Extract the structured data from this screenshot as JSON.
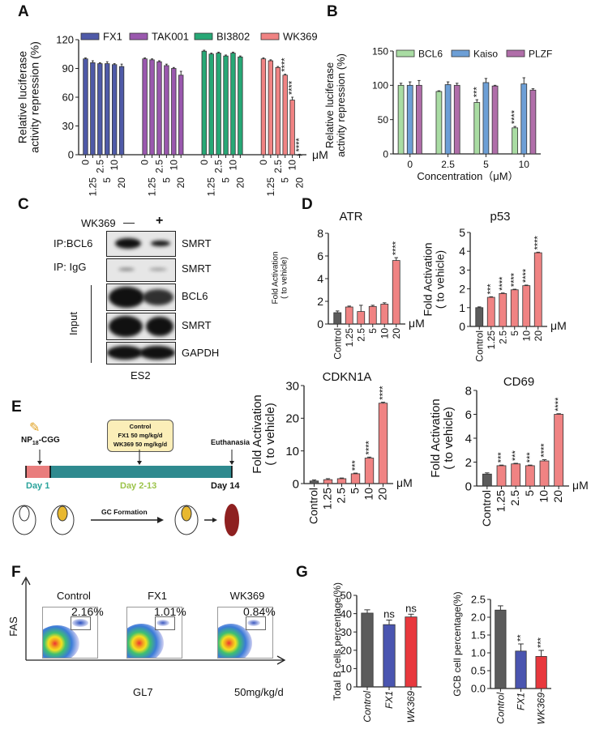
{
  "panels": {
    "A": "A",
    "B": "B",
    "C": "C",
    "D": "D",
    "E": "E",
    "F": "F",
    "G": "G"
  },
  "colors": {
    "fx1": "#4f5aa8",
    "tak001": "#9a58ae",
    "bi3802": "#27a876",
    "wk369": "#f08383",
    "bcl6": "#a9dca3",
    "kaiso": "#6d9fd6",
    "plzf": "#b06ea9",
    "control": "#5b5b5b",
    "fx1_g": "#4a55b0",
    "wk369_g": "#e8383d"
  },
  "chart_data": [
    {
      "id": "A",
      "type": "bar",
      "title": "",
      "ylabel": [
        "Relative luciferase",
        "activity  repression (%)"
      ],
      "xunit": "μM",
      "ylim": [
        0,
        120
      ],
      "yticks": [
        "0",
        "30",
        "60",
        "90",
        "120"
      ],
      "grid": false,
      "legend": "top",
      "categories": [
        "0",
        "1.25",
        "2.5",
        "5",
        "10",
        "20"
      ],
      "series": [
        {
          "name": "FX1",
          "color": "#4f5aa8",
          "values": [
            100,
            96,
            95,
            95,
            94,
            92
          ],
          "errors": [
            1,
            2,
            1,
            2,
            1,
            2.5
          ],
          "sig": [
            "",
            "",
            "",
            "",
            "",
            ""
          ]
        },
        {
          "name": "TAK001",
          "color": "#9a58ae",
          "values": [
            100,
            99,
            97,
            93,
            90,
            83
          ],
          "errors": [
            1,
            1,
            1,
            1.5,
            1,
            4
          ],
          "sig": [
            "",
            "",
            "",
            "",
            "",
            ""
          ]
        },
        {
          "name": "BI3802",
          "color": "#27a876",
          "values": [
            108,
            105,
            106,
            103,
            106,
            102
          ],
          "errors": [
            1,
            1,
            1,
            1,
            1,
            1
          ],
          "sig": [
            "",
            "",
            "",
            "",
            "",
            ""
          ]
        },
        {
          "name": "WK369",
          "color": "#f08383",
          "values": [
            100,
            98,
            91,
            83,
            57,
            0
          ],
          "errors": [
            1,
            1,
            1,
            1,
            3,
            0.5
          ],
          "sig": [
            "",
            "",
            "",
            "****",
            "****",
            "****"
          ]
        }
      ]
    },
    {
      "id": "B",
      "type": "bar",
      "title": "",
      "ylabel": [
        "Relative luciferase",
        "activity  repression (%)"
      ],
      "xlabel": "Concentration（μM）",
      "ylim": [
        0,
        150
      ],
      "yticks": [
        "0",
        "50",
        "100",
        "150"
      ],
      "grid": false,
      "legend": "top",
      "categories": [
        "0",
        "2.5",
        "5",
        "10"
      ],
      "series": [
        {
          "name": "BCL6",
          "color": "#a9dca3",
          "values": [
            100,
            91,
            75,
            38
          ],
          "errors": [
            3,
            1,
            4,
            2
          ],
          "sig": [
            "",
            "",
            "***",
            "****"
          ]
        },
        {
          "name": "Kaiso",
          "color": "#6d9fd6",
          "values": [
            100,
            101,
            104,
            102
          ],
          "errors": [
            5,
            4,
            6,
            9
          ],
          "sig": [
            "",
            "",
            "",
            ""
          ]
        },
        {
          "name": "PLZF",
          "color": "#b06ea9",
          "values": [
            100,
            100,
            99,
            93
          ],
          "errors": [
            7,
            3,
            1,
            2
          ],
          "sig": [
            "",
            "",
            "",
            ""
          ]
        }
      ]
    },
    {
      "id": "ATR",
      "type": "bar",
      "title": "ATR",
      "ylabel": [
        "Fold Activation",
        "( to vehicle)"
      ],
      "xunit": "μM",
      "ylim": [
        0,
        8
      ],
      "yticks": [
        "0",
        "2",
        "4",
        "6",
        "8"
      ],
      "categories": [
        "Control",
        "1.25",
        "2.5",
        "5",
        "10",
        "20"
      ],
      "series": [
        {
          "values": [
            1.0,
            1.5,
            1.1,
            1.55,
            1.75,
            5.6
          ],
          "errors": [
            0.15,
            0.08,
            0.55,
            0.1,
            0.12,
            0.25
          ],
          "colors": [
            "#5b5b5b",
            "#f08383",
            "#f08383",
            "#f08383",
            "#f08383",
            "#f08383"
          ],
          "sig": [
            "",
            "",
            "",
            "",
            "",
            "****"
          ]
        }
      ]
    },
    {
      "id": "p53",
      "type": "bar",
      "title": "p53",
      "ylabel": [
        "Fold Activation",
        "( to vehicle)"
      ],
      "xunit": "μM",
      "ylim": [
        0,
        5
      ],
      "yticks": [
        "0",
        "1",
        "2",
        "3",
        "4",
        "5"
      ],
      "categories": [
        "Control",
        "1.25",
        "2.5",
        "5",
        "10",
        "20"
      ],
      "series": [
        {
          "values": [
            1.0,
            1.55,
            1.75,
            1.95,
            2.17,
            3.92
          ],
          "errors": [
            0.04,
            0.03,
            0.03,
            0.03,
            0.03,
            0.03
          ],
          "colors": [
            "#5b5b5b",
            "#f08383",
            "#f08383",
            "#f08383",
            "#f08383",
            "#f08383"
          ],
          "sig": [
            "",
            "***",
            "****",
            "****",
            "****",
            "****"
          ]
        }
      ]
    },
    {
      "id": "CDKN1A",
      "type": "bar",
      "title": "CDKN1A",
      "ylabel": [
        "Fold Activation",
        "( to vehicle)"
      ],
      "xunit": "μM",
      "ylim": [
        0,
        30
      ],
      "yticks": [
        "0",
        "10",
        "20",
        "30"
      ],
      "categories": [
        "Control",
        "1.25",
        "2.5",
        "5",
        "10",
        "20"
      ],
      "series": [
        {
          "values": [
            0.8,
            1.2,
            1.5,
            3.0,
            7.8,
            24.6
          ],
          "errors": [
            0.3,
            0.3,
            0.2,
            0.2,
            0.3,
            0.3
          ],
          "colors": [
            "#5b5b5b",
            "#f08383",
            "#f08383",
            "#f08383",
            "#f08383",
            "#f08383"
          ],
          "sig": [
            "",
            "",
            "",
            "***",
            "****",
            "****"
          ]
        }
      ]
    },
    {
      "id": "CD69",
      "type": "bar",
      "title": "CD69",
      "ylabel": [
        "Fold Activation",
        "( to vehicle)"
      ],
      "xunit": "μM",
      "ylim": [
        0,
        8
      ],
      "yticks": [
        "0",
        "2",
        "4",
        "6",
        "8"
      ],
      "categories": [
        "Control",
        "1.25",
        "2.5",
        "5",
        "10",
        "20"
      ],
      "series": [
        {
          "values": [
            1.0,
            1.7,
            1.85,
            1.7,
            2.1,
            6.0
          ],
          "errors": [
            0.1,
            0.05,
            0.05,
            0.05,
            0.1,
            0.05
          ],
          "colors": [
            "#5b5b5b",
            "#f08383",
            "#f08383",
            "#f08383",
            "#f08383",
            "#f08383"
          ],
          "sig": [
            "",
            "***",
            "***",
            "***",
            "****",
            "****"
          ]
        }
      ]
    },
    {
      "id": "TotalB",
      "type": "bar",
      "title": "",
      "ylabel": [
        "Total B cells percentage(%)"
      ],
      "ylim": [
        0,
        50
      ],
      "yticks": [
        "0",
        "10",
        "20",
        "30",
        "40",
        "50"
      ],
      "categories": [
        "Control",
        "FX1",
        "WK369"
      ],
      "series": [
        {
          "values": [
            40.3,
            34,
            38.2
          ],
          "errors": [
            1.8,
            2.5,
            1.5
          ],
          "colors": [
            "#5b5b5b",
            "#4a55b0",
            "#e8383d"
          ],
          "sig": [
            "",
            "ns",
            "ns"
          ]
        }
      ]
    },
    {
      "id": "GCB",
      "type": "bar",
      "title": "",
      "ylabel": [
        "GCB cell percentage(%)"
      ],
      "ylim": [
        0,
        2.5
      ],
      "yticks": [
        "0.0",
        "0.5",
        "1.0",
        "1.5",
        "2.0",
        "2.5"
      ],
      "categories": [
        "Control",
        "FX1",
        "WK369"
      ],
      "series": [
        {
          "values": [
            2.2,
            1.05,
            0.9
          ],
          "errors": [
            0.12,
            0.2,
            0.17
          ],
          "colors": [
            "#5b5b5b",
            "#4a55b0",
            "#e8383d"
          ],
          "sig": [
            "",
            "**",
            "***"
          ]
        }
      ]
    }
  ],
  "blot": {
    "treatment": "WK369",
    "minus": "—",
    "plus": "+",
    "rows": [
      {
        "left": "IP:BCL6",
        "right": "SMRT"
      },
      {
        "left": "IP: IgG",
        "right": "SMRT"
      },
      {
        "left": "",
        "right": "BCL6"
      },
      {
        "left": "",
        "right": "SMRT"
      },
      {
        "left": "",
        "right": "GAPDH"
      }
    ],
    "input_label": "Input",
    "cell_line": "ES2"
  },
  "schedule": {
    "immunogen": "NP",
    "immunogen_sub": "18",
    "immunogen_suffix": "-CGG",
    "treatment_lines": [
      "Control",
      "FX1 50 mg/kg/d",
      "WK369 50 mg/kg/d"
    ],
    "endpoint": "Euthanasia",
    "day1": "Day 1",
    "day_mid": "Day 2-13",
    "day_end": "Day 14",
    "gc_formation": "GC Formation",
    "day1_color": "#2aa39b",
    "mid_color": "#9cc44a",
    "bar_start_color": "#e97d7d",
    "bar_color": "#2f8a8f"
  },
  "flow": {
    "y_axis": "FAS",
    "x_axis": "GL7",
    "dose": "50mg/kg/d",
    "plots": [
      {
        "title": "Control",
        "pct": "2.16%"
      },
      {
        "title": "FX1",
        "pct": "1.01%"
      },
      {
        "title": "WK369",
        "pct": "0.84%"
      }
    ]
  }
}
